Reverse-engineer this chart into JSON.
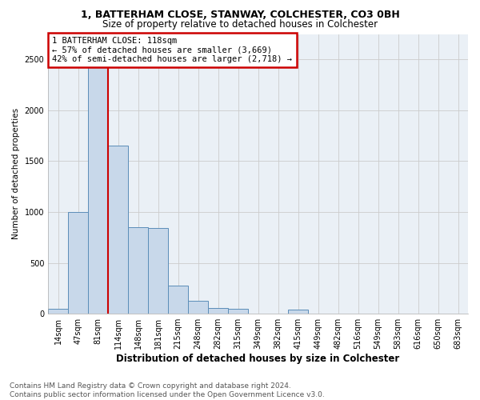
{
  "title1": "1, BATTERHAM CLOSE, STANWAY, COLCHESTER, CO3 0BH",
  "title2": "Size of property relative to detached houses in Colchester",
  "xlabel": "Distribution of detached houses by size in Colchester",
  "ylabel": "Number of detached properties",
  "footnote": "Contains HM Land Registry data © Crown copyright and database right 2024.\nContains public sector information licensed under the Open Government Licence v3.0.",
  "bar_labels": [
    "14sqm",
    "47sqm",
    "81sqm",
    "114sqm",
    "148sqm",
    "181sqm",
    "215sqm",
    "248sqm",
    "282sqm",
    "315sqm",
    "349sqm",
    "382sqm",
    "415sqm",
    "449sqm",
    "482sqm",
    "516sqm",
    "549sqm",
    "583sqm",
    "616sqm",
    "650sqm",
    "683sqm"
  ],
  "bar_values": [
    50,
    1000,
    2490,
    1650,
    850,
    840,
    280,
    130,
    60,
    50,
    0,
    0,
    40,
    0,
    0,
    0,
    0,
    0,
    0,
    0,
    0
  ],
  "bar_color": "#c8d8ea",
  "bar_edge_color": "#5b8db8",
  "vline_index": 2.5,
  "property_size": "118sqm",
  "pct_smaller": 57,
  "count_smaller": "3,669",
  "pct_larger_semi": 42,
  "count_larger_semi": "2,718",
  "vline_color": "#cc0000",
  "annotation_box_color": "#cc0000",
  "ylim": [
    0,
    2750
  ],
  "yticks": [
    0,
    500,
    1000,
    1500,
    2000,
    2500
  ],
  "grid_color": "#cccccc",
  "bg_color": "#eaf0f6",
  "title1_fontsize": 9,
  "title2_fontsize": 8.5,
  "xlabel_fontsize": 8.5,
  "ylabel_fontsize": 7.5,
  "tick_fontsize": 7,
  "annot_fontsize": 7.5,
  "footnote_fontsize": 6.5
}
